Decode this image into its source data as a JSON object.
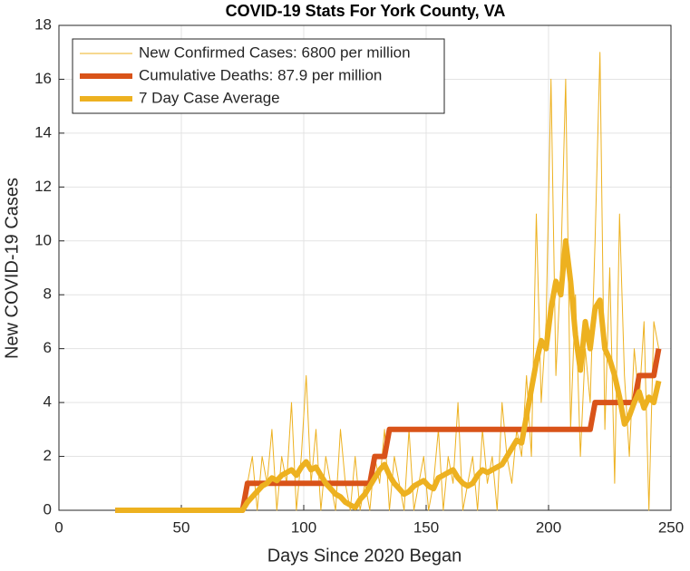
{
  "chart_data": {
    "type": "line",
    "title": "COVID-19 Stats For York County, VA",
    "x_label": "Days Since 2020 Began",
    "y_label": "New COVID-19 Cases",
    "x": [
      23,
      25,
      27,
      29,
      31,
      33,
      35,
      37,
      39,
      41,
      43,
      45,
      47,
      49,
      51,
      53,
      55,
      57,
      59,
      61,
      63,
      65,
      67,
      69,
      71,
      73,
      75,
      77,
      79,
      81,
      83,
      85,
      87,
      89,
      91,
      93,
      95,
      97,
      99,
      101,
      103,
      105,
      107,
      109,
      111,
      113,
      115,
      117,
      119,
      121,
      123,
      125,
      127,
      129,
      131,
      133,
      135,
      137,
      139,
      141,
      143,
      145,
      147,
      149,
      151,
      153,
      155,
      157,
      159,
      161,
      163,
      165,
      167,
      169,
      171,
      173,
      175,
      177,
      179,
      181,
      183,
      185,
      187,
      189,
      191,
      193,
      195,
      197,
      199,
      201,
      203,
      205,
      207,
      209,
      211,
      213,
      215,
      217,
      219,
      221,
      223,
      225,
      227,
      229,
      231,
      233,
      235,
      237,
      239,
      241,
      243,
      245
    ],
    "series": [
      {
        "name": "New Confirmed Cases: 6800 per million",
        "color": "#edb120",
        "width": 1,
        "values": [
          0,
          0,
          0,
          0,
          0,
          0,
          0,
          0,
          0,
          0,
          0,
          0,
          0,
          0,
          0,
          0,
          0,
          0,
          0,
          0,
          0,
          0,
          0,
          0,
          0,
          0,
          0,
          1,
          2,
          0,
          2,
          1,
          3,
          0,
          2,
          1,
          4,
          0,
          2,
          5,
          1,
          3,
          0,
          2,
          1,
          0,
          3,
          1,
          0,
          2,
          0,
          1,
          0,
          2,
          1,
          3,
          0,
          2,
          1,
          0,
          3,
          0,
          1,
          2,
          0,
          1,
          3,
          0,
          2,
          1,
          4,
          0,
          1,
          2,
          0,
          3,
          1,
          2,
          0,
          4,
          2,
          1,
          3,
          2,
          5,
          2,
          11,
          4,
          7,
          16,
          5,
          9,
          16,
          3,
          8,
          2,
          6,
          4,
          10,
          17,
          3,
          9,
          1,
          11,
          5,
          2,
          6,
          4,
          7,
          0,
          7,
          6
        ]
      },
      {
        "name": "Cumulative Deaths: 87.9 per million",
        "color": "#d95319",
        "width": 6,
        "values": [
          0,
          0,
          0,
          0,
          0,
          0,
          0,
          0,
          0,
          0,
          0,
          0,
          0,
          0,
          0,
          0,
          0,
          0,
          0,
          0,
          0,
          0,
          0,
          0,
          0,
          0,
          0,
          1,
          1,
          1,
          1,
          1,
          1,
          1,
          1,
          1,
          1,
          1,
          1,
          1,
          1,
          1,
          1,
          1,
          1,
          1,
          1,
          1,
          1,
          1,
          1,
          1,
          1,
          2,
          2,
          2,
          3,
          3,
          3,
          3,
          3,
          3,
          3,
          3,
          3,
          3,
          3,
          3,
          3,
          3,
          3,
          3,
          3,
          3,
          3,
          3,
          3,
          3,
          3,
          3,
          3,
          3,
          3,
          3,
          3,
          3,
          3,
          3,
          3,
          3,
          3,
          3,
          3,
          3,
          3,
          3,
          3,
          3,
          4,
          4,
          4,
          4,
          4,
          4,
          4,
          4,
          4,
          5,
          5,
          5,
          5,
          6
        ]
      },
      {
        "name": "7 Day Case Average",
        "color": "#edb120",
        "width": 6,
        "values": [
          0,
          0,
          0,
          0,
          0,
          0,
          0,
          0,
          0,
          0,
          0,
          0,
          0,
          0,
          0,
          0,
          0,
          0,
          0,
          0,
          0,
          0,
          0,
          0,
          0,
          0,
          0,
          0.3,
          0.5,
          0.7,
          0.9,
          1.0,
          1.2,
          1.1,
          1.3,
          1.4,
          1.5,
          1.3,
          1.6,
          1.8,
          1.5,
          1.6,
          1.3,
          1.0,
          0.8,
          0.6,
          0.5,
          0.3,
          0.2,
          0.1,
          0.4,
          0.6,
          0.9,
          1.2,
          1.5,
          1.7,
          1.3,
          1.0,
          0.8,
          0.6,
          0.7,
          0.9,
          1.0,
          1.1,
          0.9,
          0.8,
          1.2,
          1.3,
          1.4,
          1.5,
          1.2,
          1.0,
          0.9,
          1.0,
          1.3,
          1.5,
          1.4,
          1.5,
          1.6,
          1.7,
          2.0,
          2.3,
          2.6,
          2.5,
          3.5,
          4.5,
          5.5,
          6.3,
          6.0,
          7.5,
          8.5,
          8.0,
          10.0,
          8.5,
          6.5,
          5.2,
          7.0,
          6.0,
          7.5,
          7.8,
          6.0,
          5.6,
          5.0,
          4.2,
          3.2,
          3.5,
          4.0,
          4.4,
          3.8,
          4.2,
          4.0,
          4.8
        ]
      }
    ],
    "xlim": [
      0,
      250
    ],
    "xticks": [
      0,
      50,
      100,
      150,
      200,
      250
    ],
    "ylim": [
      0,
      18
    ],
    "yticks": [
      0,
      2,
      4,
      6,
      8,
      10,
      12,
      14,
      16,
      18
    ],
    "grid": true,
    "legend": "top-left"
  }
}
